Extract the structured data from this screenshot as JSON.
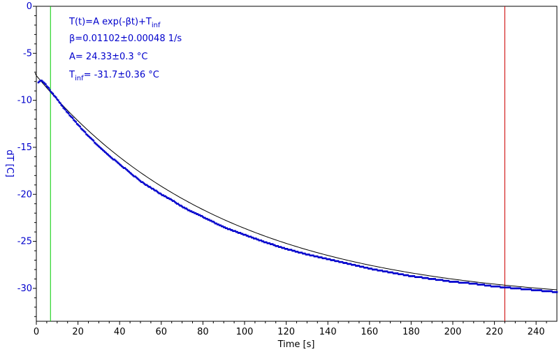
{
  "colors": {
    "data_blue": "#0000cc",
    "axis_blue": "#0000cc",
    "fit_black": "#000000",
    "marker_green": "#00cc00",
    "marker_red": "#cc0000",
    "text_black": "#000000"
  },
  "chart_data": {
    "type": "scatter",
    "xlabel": "Time [s]",
    "ylabel": "dT [C]",
    "xlim": [
      0,
      250
    ],
    "ylim": [
      -33.5,
      0
    ],
    "x_ticks": [
      0,
      20,
      40,
      60,
      80,
      100,
      120,
      140,
      160,
      180,
      200,
      220,
      240
    ],
    "y_ticks": [
      0,
      -5,
      -10,
      -15,
      -20,
      -25,
      -30
    ],
    "x_tick_labels": [
      "0",
      "20",
      "40",
      "60",
      "80",
      "100",
      "120",
      "140",
      "160",
      "180",
      "200",
      "220",
      "240"
    ],
    "y_tick_labels": [
      "0",
      "-5",
      "-10",
      "-15",
      "-20",
      "-25",
      "-30"
    ],
    "fit": {
      "model": "T(t)=A exp(-βt)+T_inf",
      "A": 24.33,
      "beta": 0.01102,
      "T_inf": -31.7
    },
    "series": [
      {
        "marker": "dot",
        "x": [
          1,
          2,
          3,
          4,
          5,
          6,
          7,
          8,
          10,
          12,
          15,
          20,
          25,
          30,
          35,
          40,
          45,
          50,
          55,
          60,
          65,
          70,
          75,
          80,
          90,
          100,
          110,
          120,
          130,
          140,
          150,
          160,
          170,
          180,
          190,
          200,
          210,
          220,
          230,
          240,
          250
        ],
        "y": [
          -8.1,
          -7.9,
          -8.0,
          -8.2,
          -8.5,
          -8.7,
          -9.1,
          -9.3,
          -9.9,
          -10.5,
          -11.3,
          -12.6,
          -13.8,
          -14.9,
          -15.9,
          -16.8,
          -17.7,
          -18.6,
          -19.3,
          -20.0,
          -20.6,
          -21.3,
          -21.9,
          -22.4,
          -23.5,
          -24.3,
          -25.1,
          -25.8,
          -26.4,
          -26.9,
          -27.4,
          -27.9,
          -28.3,
          -28.7,
          -29.0,
          -29.3,
          -29.5,
          -29.8,
          -30.0,
          -30.2,
          -30.4
        ]
      }
    ],
    "markers": [
      {
        "x": 6.8,
        "color": "green"
      },
      {
        "x": 225,
        "color": "red"
      }
    ],
    "annotations": {
      "line1_main": "T(t)=A exp(-βt)+T",
      "line1_sub": "inf",
      "line2": "β=0.01102±0.00048 1/s",
      "line3": "A= 24.33±0.3 °C",
      "line4_main": "T",
      "line4_sub": "inf",
      "line4_rest": "= -31.7±0.36 °C"
    }
  }
}
